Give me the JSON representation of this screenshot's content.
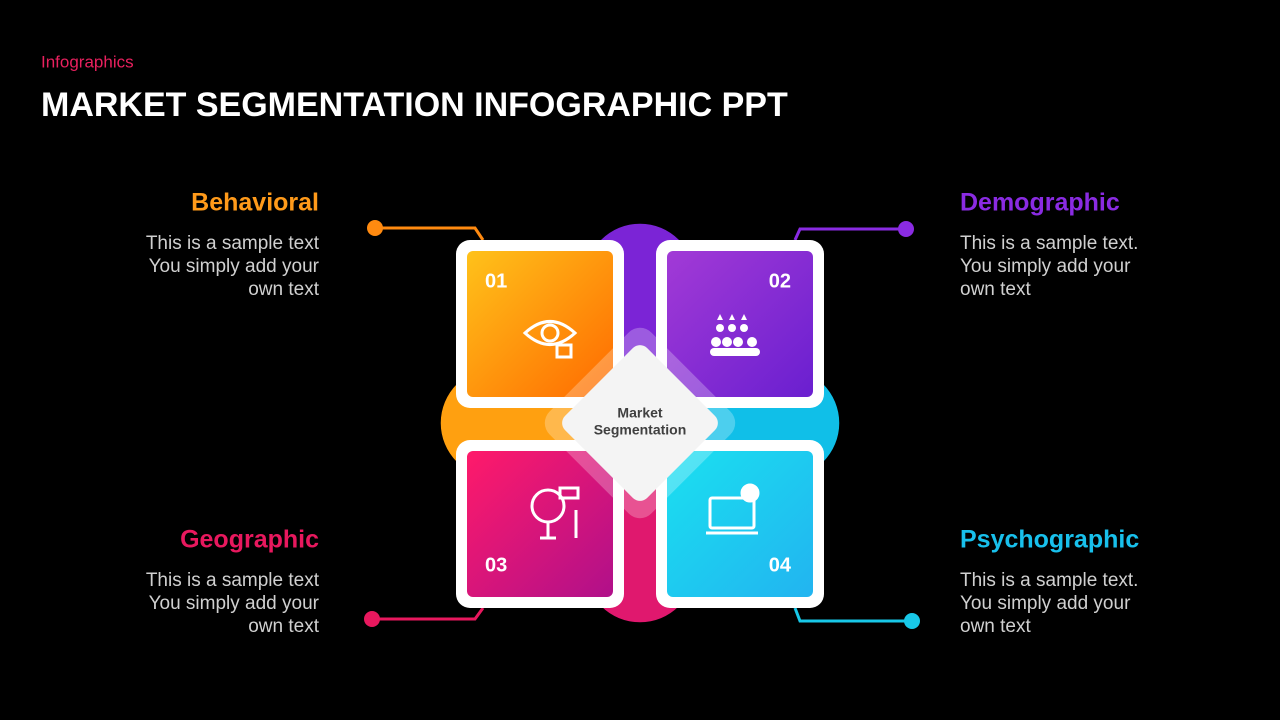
{
  "header": {
    "label": "Infographics",
    "title": "MARKET SEGMENTATION INFOGRAPHIC PPT"
  },
  "center": {
    "lines": [
      "Market",
      "Segmentation"
    ]
  },
  "segments": [
    {
      "number": "01",
      "title": "Behavioral",
      "lines": [
        "This is a sample text",
        "You simply add your",
        "own text"
      ]
    },
    {
      "number": "02",
      "title": "Demographic",
      "lines": [
        "This is a sample text.",
        "You simply add your",
        "own text"
      ]
    },
    {
      "number": "03",
      "title": "Geographic",
      "lines": [
        "This is a sample text",
        "You simply add your",
        "own text"
      ]
    },
    {
      "number": "04",
      "title": "Psychographic",
      "lines": [
        "This is a sample text.",
        "You simply add your",
        "own text"
      ]
    }
  ]
}
